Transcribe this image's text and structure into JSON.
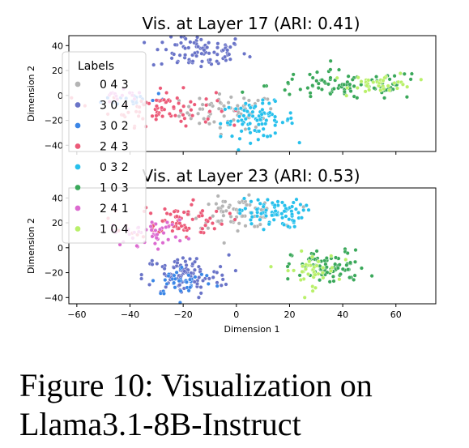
{
  "figure": {
    "caption_line1": "Figure 10: Visualization on",
    "caption_line2": "Llama3.1-8B-Instruct"
  },
  "legend": {
    "title": "Labels",
    "placement": "left overlay",
    "entries": [
      {
        "label": "0 4 3",
        "color": "#b4b4b4"
      },
      {
        "label": "3 0 4",
        "color": "#6a74c8"
      },
      {
        "label": "3 0 2",
        "color": "#3b86e6"
      },
      {
        "label": "2 4 3",
        "color": "#ec5a78"
      },
      {
        "label": "0 3 2",
        "color": "#27c0ec"
      },
      {
        "label": "1 0 3",
        "color": "#3aa85a"
      },
      {
        "label": "2 4 1",
        "color": "#dc6ad0"
      },
      {
        "label": "1 0 4",
        "color": "#b9f06a"
      }
    ]
  },
  "chart_data": [
    {
      "type": "scatter",
      "title": "Vis. at Layer 17 (ARI: 0.41)",
      "xlabel": "",
      "ylabel": "Dimension 2",
      "xlim": [
        -63,
        75
      ],
      "ylim": [
        -45,
        48
      ],
      "xticks": [
        -60,
        -40,
        -20,
        0,
        20,
        40,
        60
      ],
      "show_xtick_labels": false,
      "yticks": [
        {
          "value": 40,
          "label": "40"
        },
        {
          "value": 20,
          "label": "20"
        },
        {
          "value": 0,
          "label": "0"
        },
        {
          "value": -20,
          "label": "−20"
        },
        {
          "value": -40,
          "label": "−40"
        }
      ],
      "grid": false,
      "clusters": [
        {
          "label": "0 4 3",
          "cx": -3,
          "cy": -13,
          "sx": 9,
          "sy": 7,
          "n": 70
        },
        {
          "label": "3 0 4",
          "cx": -14,
          "cy": 35,
          "sx": 9,
          "sy": 7,
          "n": 85
        },
        {
          "label": "3 0 2",
          "cx": -38,
          "cy": -3,
          "sx": 6,
          "sy": 3,
          "n": 20
        },
        {
          "label": "2 4 3",
          "cx": -28,
          "cy": -10,
          "sx": 10,
          "sy": 7,
          "n": 75
        },
        {
          "label": "0 3 2",
          "cx": 8,
          "cy": -20,
          "sx": 7,
          "sy": 7,
          "n": 80
        },
        {
          "label": "1 0 3",
          "cx": 42,
          "cy": 8,
          "sx": 15,
          "sy": 6,
          "n": 95
        },
        {
          "label": "2 4 1",
          "cx": -44,
          "cy": -2,
          "sx": 5,
          "sy": 3,
          "n": 15
        },
        {
          "label": "1 0 4",
          "cx": 55,
          "cy": 10,
          "sx": 6,
          "sy": 4,
          "n": 40
        }
      ]
    },
    {
      "type": "scatter",
      "title": "Vis. at Layer 23 (ARI: 0.53)",
      "xlabel": "Dimension 1",
      "ylabel": "Dimension 2",
      "xlim": [
        -63,
        75
      ],
      "ylim": [
        -45,
        48
      ],
      "xticks": [
        -60,
        -40,
        -20,
        0,
        20,
        40,
        60
      ],
      "show_xtick_labels": true,
      "xtick_labels": [
        "−60",
        "−40",
        "−20",
        "0",
        "20",
        "40",
        "60"
      ],
      "yticks": [
        {
          "value": 40,
          "label": "40"
        },
        {
          "value": 20,
          "label": "20"
        },
        {
          "value": 0,
          "label": "0"
        },
        {
          "value": -20,
          "label": "−20"
        },
        {
          "value": -40,
          "label": "−40"
        }
      ],
      "grid": false,
      "clusters": [
        {
          "label": "0 4 3",
          "cx": 0,
          "cy": 28,
          "sx": 8,
          "sy": 6,
          "n": 70
        },
        {
          "label": "3 0 4",
          "cx": -19,
          "cy": -22,
          "sx": 8,
          "sy": 8,
          "n": 90
        },
        {
          "label": "3 0 2",
          "cx": -20,
          "cy": -27,
          "sx": 6,
          "sy": 6,
          "n": 40
        },
        {
          "label": "2 4 3",
          "cx": -22,
          "cy": 22,
          "sx": 9,
          "sy": 7,
          "n": 75
        },
        {
          "label": "0 3 2",
          "cx": 13,
          "cy": 28,
          "sx": 6,
          "sy": 6,
          "n": 80
        },
        {
          "label": "1 0 3",
          "cx": 35,
          "cy": -16,
          "sx": 7,
          "sy": 7,
          "n": 85
        },
        {
          "label": "2 4 1",
          "cx": -33,
          "cy": 12,
          "sx": 7,
          "sy": 5,
          "n": 45
        },
        {
          "label": "1 0 4",
          "cx": 28,
          "cy": -18,
          "sx": 5,
          "sy": 7,
          "n": 40
        }
      ]
    }
  ]
}
